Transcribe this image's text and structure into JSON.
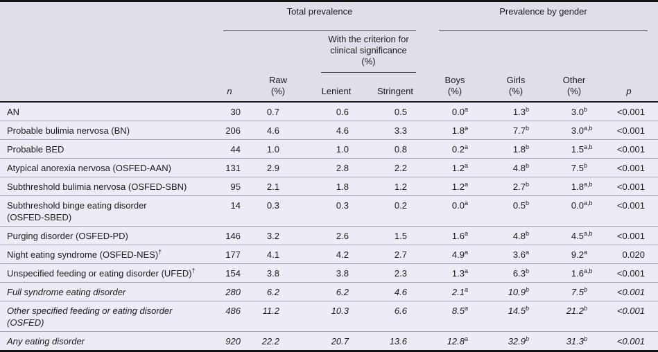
{
  "table": {
    "groups": {
      "total": "Total prevalence",
      "gender": "Prevalence by gender",
      "clinical": "With the criterion for\nclinical significance\n(%)"
    },
    "columns": {
      "n": "n",
      "raw": "Raw\n(%)",
      "lenient": "Lenient",
      "stringent": "Stringent",
      "boys": "Boys\n(%)",
      "girls": "Girls\n(%)",
      "other": "Other\n(%)",
      "p": "p"
    },
    "rows": [
      {
        "label": "AN",
        "n": "30",
        "raw": "0.7",
        "lenient": "0.6",
        "stringent": "0.5",
        "boys": {
          "v": "0.0",
          "s": "a"
        },
        "girls": {
          "v": "1.3",
          "s": "b"
        },
        "other": {
          "v": "3.0",
          "s": "b"
        },
        "p": "<0.001"
      },
      {
        "label": "Probable bulimia nervosa (BN)",
        "n": "206",
        "raw": "4.6",
        "lenient": "4.6",
        "stringent": "3.3",
        "boys": {
          "v": "1.8",
          "s": "a"
        },
        "girls": {
          "v": "7.7",
          "s": "b"
        },
        "other": {
          "v": "3.0",
          "s": "a,b"
        },
        "p": "<0.001"
      },
      {
        "label": "Probable BED",
        "n": "44",
        "raw": "1.0",
        "lenient": "1.0",
        "stringent": "0.8",
        "boys": {
          "v": "0.2",
          "s": "a"
        },
        "girls": {
          "v": "1.8",
          "s": "b"
        },
        "other": {
          "v": "1.5",
          "s": "a,b"
        },
        "p": "<0.001"
      },
      {
        "label": "Atypical anorexia nervosa (OSFED-AAN)",
        "n": "131",
        "raw": "2.9",
        "lenient": "2.8",
        "stringent": "2.2",
        "boys": {
          "v": "1.2",
          "s": "a"
        },
        "girls": {
          "v": "4.8",
          "s": "b"
        },
        "other": {
          "v": "7.5",
          "s": "b"
        },
        "p": "<0.001"
      },
      {
        "label": "Subthreshold bulimia nervosa (OSFED-SBN)",
        "n": "95",
        "raw": "2.1",
        "lenient": "1.8",
        "stringent": "1.2",
        "boys": {
          "v": "1.2",
          "s": "a"
        },
        "girls": {
          "v": "2.7",
          "s": "b"
        },
        "other": {
          "v": "1.8",
          "s": "a,b"
        },
        "p": "<0.001"
      },
      {
        "label": "Subthreshold binge eating disorder\n(OSFED-SBED)",
        "n": "14",
        "raw": "0.3",
        "lenient": "0.3",
        "stringent": "0.2",
        "boys": {
          "v": "0.0",
          "s": "a"
        },
        "girls": {
          "v": "0.5",
          "s": "b"
        },
        "other": {
          "v": "0.0",
          "s": "a,b"
        },
        "p": "<0.001"
      },
      {
        "label": "Purging disorder (OSFED-PD)",
        "n": "146",
        "raw": "3.2",
        "lenient": "2.6",
        "stringent": "1.5",
        "boys": {
          "v": "1.6",
          "s": "a"
        },
        "girls": {
          "v": "4.8",
          "s": "b"
        },
        "other": {
          "v": "4.5",
          "s": "a,b"
        },
        "p": "<0.001"
      },
      {
        "label": "Night eating syndrome (OSFED-NES)",
        "dagger": true,
        "n": "177",
        "raw": "4.1",
        "lenient": "4.2",
        "stringent": "2.7",
        "boys": {
          "v": "4.9",
          "s": "a"
        },
        "girls": {
          "v": "3.6",
          "s": "a"
        },
        "other": {
          "v": "9.2",
          "s": "a"
        },
        "p": "0.020"
      },
      {
        "label": "Unspecified feeding or eating disorder (UFED)",
        "dagger": true,
        "n": "154",
        "raw": "3.8",
        "lenient": "3.8",
        "stringent": "2.3",
        "boys": {
          "v": "1.3",
          "s": "a"
        },
        "girls": {
          "v": "6.3",
          "s": "b"
        },
        "other": {
          "v": "1.6",
          "s": "a,b"
        },
        "p": "<0.001"
      },
      {
        "label": "Full syndrome eating disorder",
        "italic": true,
        "n": "280",
        "raw": "6.2",
        "lenient": "6.2",
        "stringent": "4.6",
        "boys": {
          "v": "2.1",
          "s": "a"
        },
        "girls": {
          "v": "10.9",
          "s": "b"
        },
        "other": {
          "v": "7.5",
          "s": "b"
        },
        "p": "<0.001"
      },
      {
        "label": "Other specified feeding or eating disorder\n(OSFED)",
        "italic": true,
        "n": "486",
        "raw": "11.2",
        "lenient": "10.3",
        "stringent": "6.6",
        "boys": {
          "v": "8.5",
          "s": "a"
        },
        "girls": {
          "v": "14.5",
          "s": "b"
        },
        "other": {
          "v": "21.2",
          "s": "b"
        },
        "p": "<0.001"
      },
      {
        "label": "Any eating disorder",
        "italic": true,
        "n": "920",
        "raw": "22.2",
        "lenient": "20.7",
        "stringent": "13.6",
        "boys": {
          "v": "12.8",
          "s": "a"
        },
        "girls": {
          "v": "32.9",
          "s": "b"
        },
        "other": {
          "v": "31.3",
          "s": "b"
        },
        "p": "<0.001"
      }
    ],
    "colors": {
      "header_bg": "#dfdee9",
      "body_bg": "#edecf6",
      "rule": "#3a3a42",
      "separator": "#a3a2b2",
      "frame": "#151515",
      "text": "#1b1b1b"
    }
  }
}
